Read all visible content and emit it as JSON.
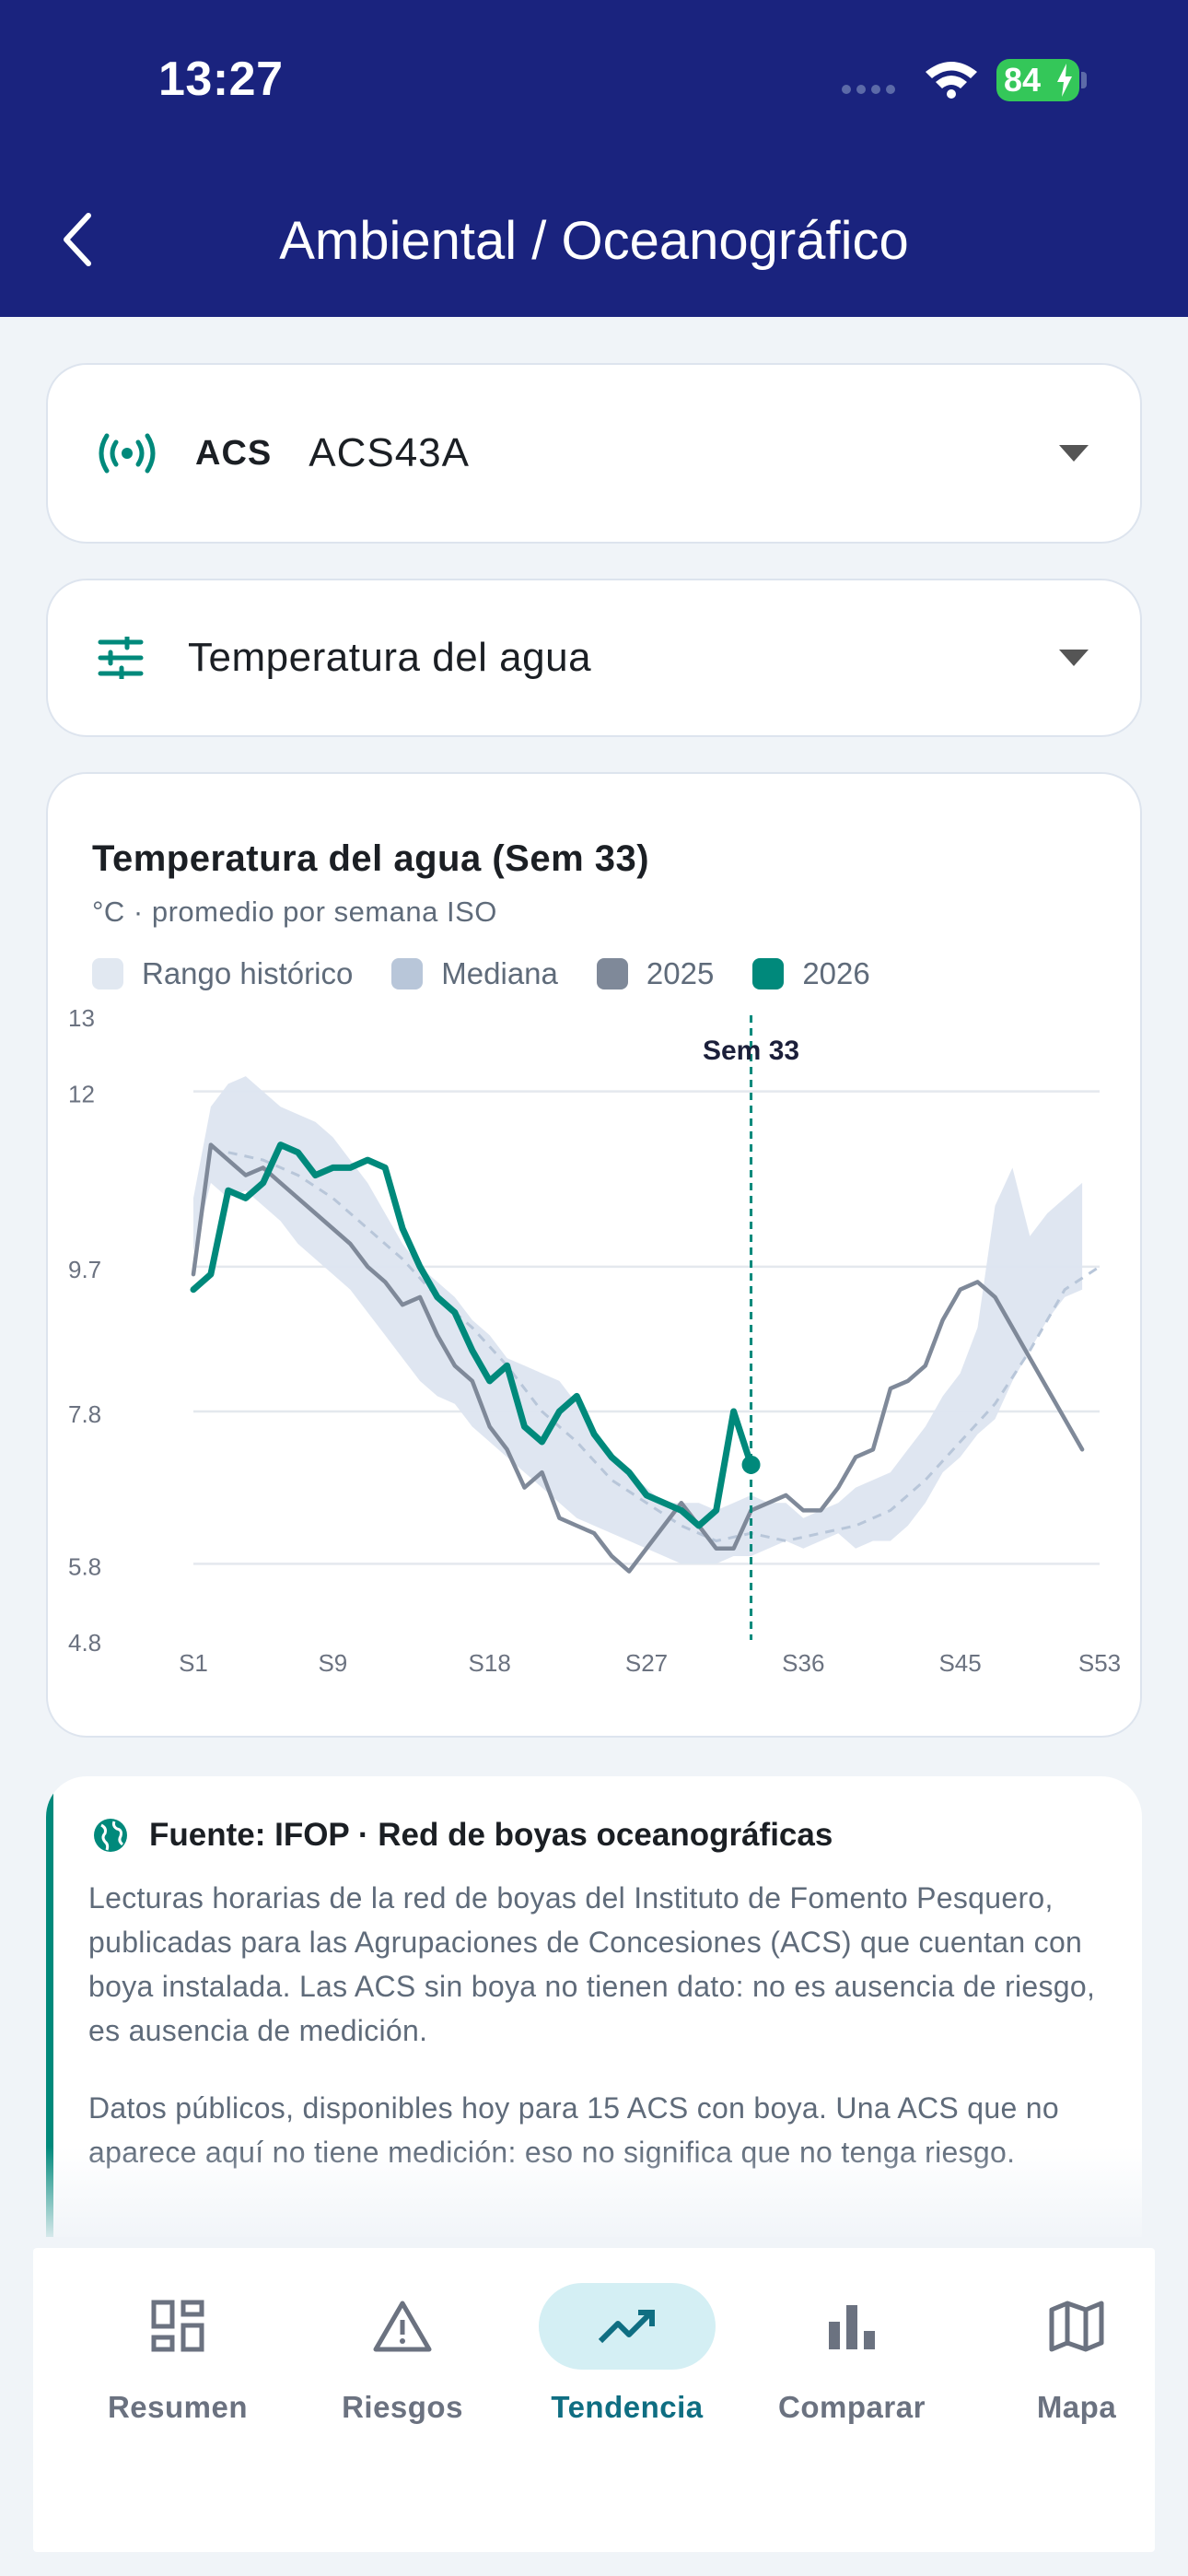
{
  "status_bar": {
    "time": "13:27",
    "battery": "84"
  },
  "header": {
    "title": "Ambiental / Oceanográfico"
  },
  "station_select": {
    "tag": "ACS",
    "value": "ACS43A"
  },
  "metric_select": {
    "value": "Temperatura del agua"
  },
  "chart_data": {
    "type": "line",
    "title": "Temperatura del agua (Sem 33)",
    "subtitle": "°C · promedio por semana ISO",
    "legend": [
      {
        "label": "Rango histórico",
        "color": "#e1e8f1"
      },
      {
        "label": "Mediana",
        "color": "#b8c6d9"
      },
      {
        "label": "2025",
        "color": "#7f8999"
      },
      {
        "label": "2026",
        "color": "#00897b"
      }
    ],
    "y_ticks": [
      "13",
      "12",
      "9.7",
      "7.8",
      "5.8",
      "4.8"
    ],
    "x_ticks": [
      "S1",
      "S9",
      "S18",
      "S27",
      "S36",
      "S45",
      "S53"
    ],
    "ylim": [
      4.8,
      13
    ],
    "xlim": [
      1,
      53
    ],
    "marker_label": "Sem 33",
    "marker_week": 33,
    "band": {
      "x": [
        1,
        2,
        3,
        4,
        5,
        6,
        7,
        8,
        9,
        10,
        11,
        12,
        13,
        14,
        15,
        16,
        17,
        18,
        19,
        20,
        21,
        22,
        23,
        24,
        25,
        26,
        27,
        28,
        29,
        30,
        31,
        32,
        33,
        34,
        35,
        36,
        37,
        38,
        39,
        40,
        41,
        42,
        43,
        44,
        45,
        46,
        47,
        48,
        49,
        50,
        51,
        52
      ],
      "low": [
        9.9,
        10.8,
        10.6,
        10.7,
        10.5,
        10.3,
        10.0,
        9.8,
        9.6,
        9.4,
        9.1,
        8.8,
        8.5,
        8.2,
        8.0,
        7.9,
        7.6,
        7.4,
        7.2,
        7.0,
        6.8,
        6.6,
        6.4,
        6.3,
        6.2,
        6.1,
        6.0,
        5.9,
        5.8,
        5.8,
        5.8,
        5.9,
        5.9,
        6.0,
        6.1,
        6.0,
        6.1,
        6.2,
        6.0,
        6.1,
        6.1,
        6.3,
        6.6,
        7.0,
        7.2,
        7.5,
        7.7,
        8.2,
        8.6,
        9.0,
        9.3,
        9.4
      ],
      "high": [
        10.6,
        11.8,
        12.1,
        12.2,
        12.0,
        11.8,
        11.7,
        11.6,
        11.4,
        11.1,
        10.8,
        10.4,
        10.0,
        9.7,
        9.5,
        9.3,
        9.0,
        8.8,
        8.5,
        8.4,
        8.3,
        8.2,
        7.9,
        7.5,
        7.2,
        7.0,
        6.8,
        6.6,
        6.6,
        6.6,
        6.5,
        6.6,
        6.7,
        6.6,
        6.6,
        6.4,
        6.5,
        6.6,
        6.8,
        6.9,
        7.0,
        7.3,
        7.6,
        8.0,
        8.3,
        8.9,
        10.5,
        11.0,
        10.1,
        10.4,
        10.6,
        10.8
      ]
    },
    "median": {
      "x": [
        3,
        5,
        7,
        9,
        11,
        13,
        15,
        17,
        19,
        21,
        23,
        25,
        27,
        29,
        31,
        33,
        35,
        37,
        39,
        41,
        43,
        45,
        47,
        49,
        51,
        53
      ],
      "y": [
        11.2,
        11.1,
        10.9,
        10.6,
        10.2,
        9.8,
        9.3,
        8.9,
        8.4,
        7.8,
        7.4,
        6.9,
        6.6,
        6.3,
        6.1,
        6.2,
        6.1,
        6.2,
        6.3,
        6.5,
        6.9,
        7.4,
        7.9,
        8.6,
        9.4,
        9.7
      ]
    },
    "series": [
      {
        "name": "2025",
        "x": [
          1,
          2,
          3,
          4,
          5,
          6,
          7,
          8,
          9,
          10,
          11,
          12,
          13,
          14,
          15,
          16,
          17,
          18,
          19,
          20,
          21,
          22,
          23,
          24,
          25,
          26,
          27,
          28,
          29,
          30,
          31,
          32,
          33,
          34,
          35,
          36,
          37,
          38,
          39,
          40,
          41,
          42,
          43,
          44,
          45,
          46,
          47,
          48,
          49,
          50,
          51,
          52
        ],
        "y": [
          9.6,
          11.3,
          11.1,
          10.9,
          11.0,
          10.8,
          10.6,
          10.4,
          10.2,
          10.0,
          9.7,
          9.5,
          9.2,
          9.3,
          8.8,
          8.4,
          8.2,
          7.6,
          7.3,
          6.8,
          7.0,
          6.4,
          6.3,
          6.2,
          5.9,
          5.7,
          6.0,
          6.3,
          6.6,
          6.3,
          6.0,
          6.0,
          6.5,
          6.6,
          6.7,
          6.5,
          6.5,
          6.8,
          7.2,
          7.3,
          8.1,
          8.2,
          8.4,
          9.0,
          9.4,
          9.5,
          9.3,
          8.9,
          8.5,
          8.1,
          7.7,
          7.3
        ]
      },
      {
        "name": "2026",
        "x": [
          1,
          2,
          3,
          4,
          5,
          6,
          7,
          8,
          9,
          10,
          11,
          12,
          13,
          14,
          15,
          16,
          17,
          18,
          19,
          20,
          21,
          22,
          23,
          24,
          25,
          26,
          27,
          28,
          29,
          30,
          31,
          32,
          33
        ],
        "y": [
          9.4,
          9.6,
          10.7,
          10.6,
          10.8,
          11.3,
          11.2,
          10.9,
          11.0,
          11.0,
          11.1,
          11.0,
          10.2,
          9.7,
          9.3,
          9.1,
          8.6,
          8.2,
          8.4,
          7.6,
          7.4,
          7.8,
          8.0,
          7.5,
          7.2,
          7.0,
          6.7,
          6.6,
          6.5,
          6.3,
          6.5,
          7.8,
          7.1
        ]
      }
    ]
  },
  "info": {
    "title": "Fuente: IFOP · Red de boyas oceanográficas",
    "paragraph1": "Lecturas horarias de la red de boyas del Instituto de Fomento Pesquero, publicadas para las Agrupaciones de Concesiones (ACS) que cuentan con boya instalada. Las ACS sin boya no tienen dato: no es ausencia de riesgo, es ausencia de medición.",
    "paragraph2": "Datos públicos, disponibles hoy para 15 ACS con boya. Una ACS que no aparece aquí no tiene medición: eso no significa que no tenga riesgo."
  },
  "nav": {
    "items": [
      {
        "label": "Resumen",
        "icon": "dashboard-icon"
      },
      {
        "label": "Riesgos",
        "icon": "warning-icon"
      },
      {
        "label": "Tendencia",
        "icon": "trend-icon",
        "active": true
      },
      {
        "label": "Comparar",
        "icon": "bar-chart-icon"
      },
      {
        "label": "Mapa",
        "icon": "map-icon"
      }
    ]
  }
}
